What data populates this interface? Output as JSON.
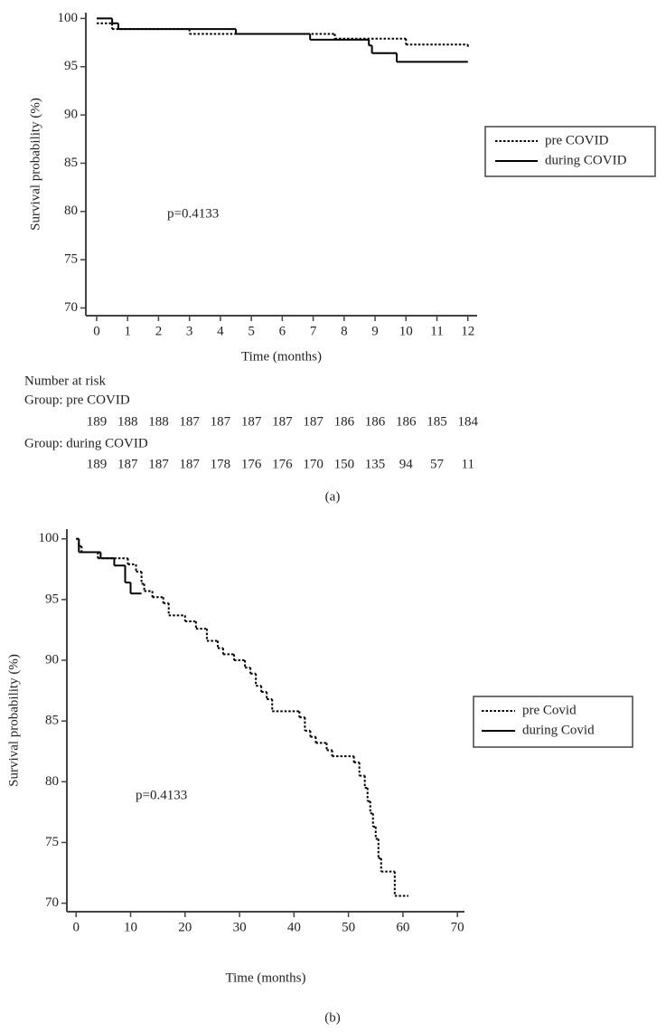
{
  "chart_data": [
    {
      "type": "step",
      "x_label": "Time (months)",
      "y_label": "Survival probability (%)",
      "annotation": "p=0.4133",
      "xlim": [
        -0.35,
        12.3
      ],
      "ylim": [
        69.2,
        100.6
      ],
      "xticks": [
        0,
        1,
        2,
        3,
        4,
        5,
        6,
        7,
        8,
        9,
        10,
        11,
        12
      ],
      "yticks": [
        70,
        75,
        80,
        85,
        90,
        95,
        100
      ],
      "legend": "right",
      "series": [
        {
          "name": "pre COVID",
          "color": "#000000",
          "style": "dotted",
          "x": [
            0,
            0.5,
            3,
            7.7,
            10,
            12
          ],
          "values": [
            99.5,
            98.9,
            98.4,
            97.9,
            97.3,
            97.0
          ]
        },
        {
          "name": "during COVID",
          "color": "#000000",
          "style": "solid",
          "x": [
            0,
            0.5,
            0.7,
            4.5,
            6.9,
            8.8,
            8.9,
            9.7,
            12
          ],
          "values": [
            100,
            99.5,
            98.9,
            98.4,
            97.8,
            97.2,
            96.4,
            95.5,
            95.5
          ]
        }
      ]
    },
    {
      "type": "step",
      "x_label": "Time (months)",
      "y_label": "Survival probability (%)",
      "annotation": "p=0.4133",
      "xlim": [
        -1.7,
        71.3
      ],
      "ylim": [
        69.3,
        100.8
      ],
      "xticks": [
        0,
        10,
        20,
        30,
        40,
        50,
        60,
        70
      ],
      "yticks": [
        70,
        75,
        80,
        85,
        90,
        95,
        100
      ],
      "legend": "right",
      "series": [
        {
          "name": "pre Covid",
          "color": "#000000",
          "style": "dotted",
          "x": [
            0,
            0.5,
            1,
            4,
            9.5,
            11,
            12,
            12.5,
            14,
            16,
            17,
            20,
            22,
            24,
            26,
            27,
            29,
            31,
            32,
            33,
            34,
            35,
            36,
            41,
            42,
            43,
            44,
            46,
            47,
            51,
            52,
            53,
            53.5,
            54,
            54.5,
            55,
            55.5,
            56,
            58.5,
            61
          ],
          "values": [
            100,
            99.4,
            98.9,
            98.4,
            97.9,
            97.3,
            96.3,
            95.7,
            95.2,
            94.7,
            93.7,
            93.2,
            92.6,
            91.6,
            91.0,
            90.5,
            90.0,
            89.4,
            88.9,
            87.9,
            87.4,
            86.8,
            85.8,
            85.3,
            84.2,
            83.7,
            83.2,
            82.6,
            82.1,
            81.6,
            80.5,
            79.5,
            78.4,
            77.4,
            76.3,
            75.3,
            73.7,
            72.6,
            70.6,
            70.6
          ]
        },
        {
          "name": "during Covid",
          "color": "#000000",
          "style": "solid",
          "x": [
            0,
            0.5,
            4.5,
            7,
            9,
            10,
            12
          ],
          "values": [
            100,
            98.9,
            98.4,
            97.8,
            96.4,
            95.5,
            95.5
          ]
        }
      ]
    }
  ],
  "at_risk": {
    "title": "Number at risk",
    "groups": [
      {
        "name": "Group: pre COVID",
        "counts": [
          "189",
          "188",
          "188",
          "187",
          "187",
          "187",
          "187",
          "187",
          "186",
          "186",
          "186",
          "185",
          "184"
        ]
      },
      {
        "name": "Group: during COVID",
        "counts": [
          "189",
          "187",
          "187",
          "187",
          "178",
          "176",
          "176",
          "170",
          "150",
          "135",
          "94",
          "57",
          "11"
        ]
      }
    ]
  },
  "captions": [
    "(a)",
    "(b)"
  ]
}
